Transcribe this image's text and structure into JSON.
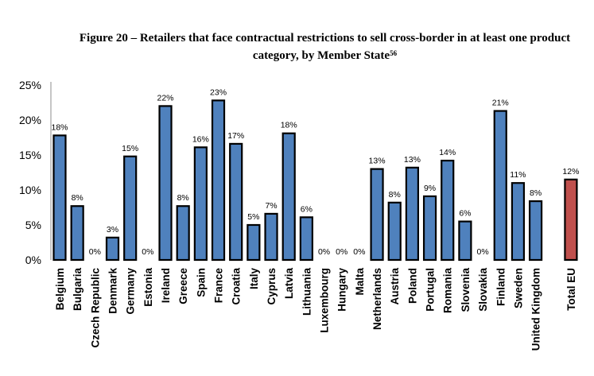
{
  "figure": {
    "title_line1": "Figure 20 – Retailers that face contractual restrictions to sell cross-border in at least one product",
    "title_line2": "category, by Member State",
    "footnote_ref": "56"
  },
  "colors": {
    "member_state_bar": "#4f81bd",
    "total_eu_bar": "#c0504d",
    "bar_outline": "#000000"
  },
  "chart_data": {
    "type": "bar",
    "title": "Figure 20 – Retailers that face contractual restrictions to sell cross-border in at least one product category, by Member State",
    "xlabel": "",
    "ylabel": "",
    "ylim": [
      0,
      25
    ],
    "yticks": [
      "0%",
      "5%",
      "10%",
      "15%",
      "20%",
      "25%"
    ],
    "ytick_values": [
      0,
      5,
      10,
      15,
      20,
      25
    ],
    "grid": false,
    "legend": "none",
    "categories": [
      "Belgium",
      "Bulgaria",
      "Czech Republic",
      "Denmark",
      "Germany",
      "Estonia",
      "Ireland",
      "Greece",
      "Spain",
      "France",
      "Croatia",
      "Italy",
      "Cyprus",
      "Latvia",
      "Lithuania",
      "Luxembourg",
      "Hungary",
      "Malta",
      "Netherlands",
      "Austria",
      "Poland",
      "Portugal",
      "Romania",
      "Slovenia",
      "Slovakia",
      "Finland",
      "Sweden",
      "United Kingdom",
      "Total EU"
    ],
    "values": [
      17.8,
      7.7,
      0,
      3.2,
      14.8,
      0,
      22.0,
      7.7,
      16.1,
      22.8,
      16.6,
      5.0,
      6.6,
      18.1,
      6.1,
      0,
      0,
      0,
      13.0,
      8.2,
      13.2,
      9.1,
      14.2,
      5.5,
      0,
      21.3,
      11.0,
      8.4,
      11.5
    ],
    "data_labels": [
      "18%",
      "8%",
      "0%",
      "3%",
      "15%",
      "0%",
      "22%",
      "8%",
      "16%",
      "23%",
      "17%",
      "5%",
      "7%",
      "18%",
      "6%",
      "0%",
      "0%",
      "0%",
      "13%",
      "8%",
      "13%",
      "9%",
      "14%",
      "6%",
      "0%",
      "21%",
      "11%",
      "8%",
      "12%"
    ],
    "highlight": [
      "Total EU"
    ]
  }
}
